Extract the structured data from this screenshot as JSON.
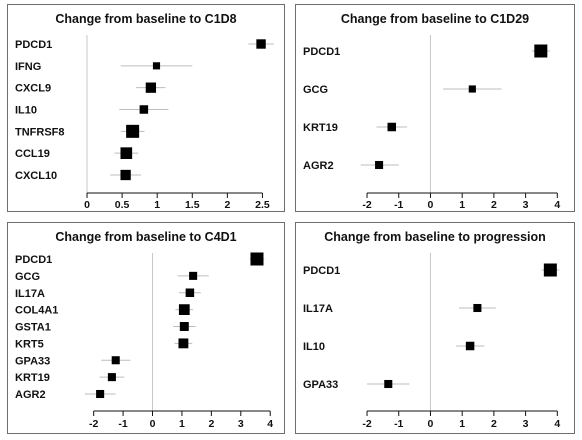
{
  "chart_data": [
    {
      "type": "forest",
      "title": "Change from baseline to C1D8",
      "xlim": [
        -0.1,
        2.75
      ],
      "xticks": [
        0,
        0.5,
        1,
        1.5,
        2,
        2.5
      ],
      "xtick_labels": [
        "0",
        "0.5",
        "1",
        "1.5",
        "2",
        "2.5"
      ],
      "reference_line": 0,
      "rows": [
        {
          "label": "PDCD1",
          "value": 2.48,
          "lower": 2.3,
          "upper": 2.66,
          "weight": 0.6
        },
        {
          "label": "IFNG",
          "value": 0.99,
          "lower": 0.48,
          "upper": 1.5,
          "weight": 0.35
        },
        {
          "label": "CXCL9",
          "value": 0.91,
          "lower": 0.7,
          "upper": 1.12,
          "weight": 0.7
        },
        {
          "label": "IL10",
          "value": 0.81,
          "lower": 0.46,
          "upper": 1.16,
          "weight": 0.5
        },
        {
          "label": "TNFRSF8",
          "value": 0.65,
          "lower": 0.48,
          "upper": 0.82,
          "weight": 1.0
        },
        {
          "label": "CCL19",
          "value": 0.56,
          "lower": 0.39,
          "upper": 0.73,
          "weight": 0.85
        },
        {
          "label": "CXCL10",
          "value": 0.55,
          "lower": 0.33,
          "upper": 0.77,
          "weight": 0.7
        }
      ]
    },
    {
      "type": "forest",
      "title": "Change from baseline to C1D29",
      "xlim": [
        -2.6,
        4.4
      ],
      "xticks": [
        -2,
        -1,
        0,
        1,
        2,
        3,
        4
      ],
      "xtick_labels": [
        "-2",
        "-1",
        "0",
        "1",
        "2",
        "3",
        "4"
      ],
      "reference_line": 0,
      "rows": [
        {
          "label": "PDCD1",
          "value": 3.48,
          "lower": 3.2,
          "upper": 3.76,
          "weight": 1.0
        },
        {
          "label": "GCG",
          "value": 1.32,
          "lower": 0.4,
          "upper": 2.24,
          "weight": 0.35
        },
        {
          "label": "KRT19",
          "value": -1.22,
          "lower": -1.7,
          "upper": -0.74,
          "weight": 0.5
        },
        {
          "label": "AGR2",
          "value": -1.62,
          "lower": -2.2,
          "upper": -1.0,
          "weight": 0.45
        }
      ]
    },
    {
      "type": "forest",
      "title": "Change from baseline to C4D1",
      "xlim": [
        -2.6,
        4.4
      ],
      "xticks": [
        -2,
        -1,
        0,
        1,
        2,
        3,
        4
      ],
      "xtick_labels": [
        "-2",
        "-1",
        "0",
        "1",
        "2",
        "3",
        "4"
      ],
      "reference_line": 0,
      "rows": [
        {
          "label": "PDCD1",
          "value": 3.55,
          "lower": 3.3,
          "upper": 3.8,
          "weight": 1.0
        },
        {
          "label": "GCG",
          "value": 1.38,
          "lower": 0.85,
          "upper": 1.91,
          "weight": 0.45
        },
        {
          "label": "IL17A",
          "value": 1.27,
          "lower": 0.9,
          "upper": 1.64,
          "weight": 0.5
        },
        {
          "label": "COL4A1",
          "value": 1.08,
          "lower": 0.78,
          "upper": 1.38,
          "weight": 0.75
        },
        {
          "label": "GSTA1",
          "value": 1.08,
          "lower": 0.7,
          "upper": 1.46,
          "weight": 0.55
        },
        {
          "label": "KRT5",
          "value": 1.05,
          "lower": 0.75,
          "upper": 1.35,
          "weight": 0.65
        },
        {
          "label": "GPA33",
          "value": -1.25,
          "lower": -1.75,
          "upper": -0.75,
          "weight": 0.45
        },
        {
          "label": "KRT19",
          "value": -1.38,
          "lower": -1.8,
          "upper": -0.96,
          "weight": 0.45
        },
        {
          "label": "AGR2",
          "value": -1.78,
          "lower": -2.3,
          "upper": -1.26,
          "weight": 0.45
        }
      ]
    },
    {
      "type": "forest",
      "title": "Change from baseline to progression",
      "xlim": [
        -2.6,
        4.4
      ],
      "xticks": [
        -2,
        -1,
        0,
        1,
        2,
        3,
        4
      ],
      "xtick_labels": [
        "-2",
        "-1",
        "0",
        "1",
        "2",
        "3",
        "4"
      ],
      "reference_line": 0,
      "rows": [
        {
          "label": "PDCD1",
          "value": 3.78,
          "lower": 3.5,
          "upper": 4.06,
          "weight": 1.0
        },
        {
          "label": "IL17A",
          "value": 1.48,
          "lower": 0.9,
          "upper": 2.06,
          "weight": 0.45
        },
        {
          "label": "IL10",
          "value": 1.25,
          "lower": 0.8,
          "upper": 1.7,
          "weight": 0.5
        },
        {
          "label": "GPA33",
          "value": -1.33,
          "lower": -2.0,
          "upper": -0.66,
          "weight": 0.45
        }
      ]
    }
  ]
}
